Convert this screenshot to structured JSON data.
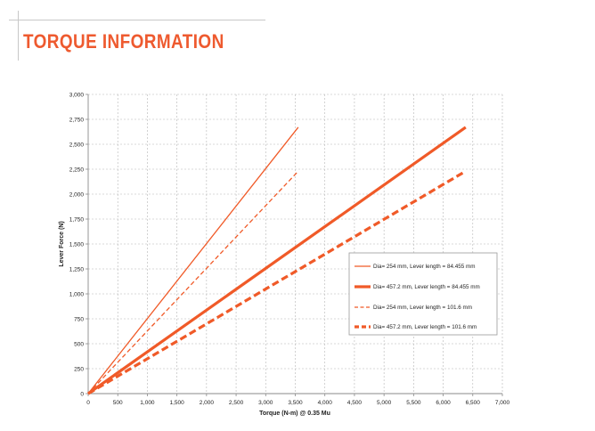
{
  "slide": {
    "title": "TORQUE INFORMATION"
  },
  "colors": {
    "accent": "#ee5a2f",
    "series": "#f05a28",
    "grid": "#b5b5b5",
    "axis": "#8a8a8a"
  },
  "chart_data": {
    "type": "line",
    "title": "",
    "xlabel": "Torque (N-m) @ 0.35 Mu",
    "ylabel": "Lever Force (N)",
    "xlim": [
      0,
      7000
    ],
    "ylim": [
      0,
      3000
    ],
    "x_ticks": [
      0,
      500,
      1000,
      1500,
      2000,
      2500,
      3000,
      3500,
      4000,
      4500,
      5000,
      5500,
      6000,
      6500,
      7000
    ],
    "x_tick_labels": [
      "0",
      "500",
      "1,000",
      "1,500",
      "2,000",
      "2,500",
      "3,000",
      "3,500",
      "4,000",
      "4,500",
      "5,000",
      "5,500",
      "6,000",
      "6,500",
      "7,000"
    ],
    "y_ticks": [
      0,
      250,
      500,
      750,
      1000,
      1250,
      1500,
      1750,
      2000,
      2250,
      2500,
      2750,
      3000
    ],
    "y_tick_labels": [
      "0",
      "250",
      "500",
      "750",
      "1,000",
      "1,250",
      "1,500",
      "1,750",
      "2,000",
      "2,250",
      "2,500",
      "2,750",
      "3,000"
    ],
    "grid": true,
    "legend_position": "right",
    "series": [
      {
        "name": "Dia= 254 mm,  Lever length = 84.455 mm",
        "style": "solid-thin",
        "x": [
          0,
          3550
        ],
        "y": [
          0,
          2670
        ]
      },
      {
        "name": "Dia= 457.2 mm,  Lever length = 84.455 mm",
        "style": "solid-thick",
        "x": [
          0,
          6380
        ],
        "y": [
          0,
          2670
        ]
      },
      {
        "name": "Dia= 254 mm,  Lever length = 101.6 mm",
        "style": "dashed-thin",
        "x": [
          0,
          3550
        ],
        "y": [
          0,
          2230
        ]
      },
      {
        "name": "Dia= 457.2 mm,  Lever length = 101.6 mm",
        "style": "dashed-thick",
        "x": [
          0,
          6380
        ],
        "y": [
          0,
          2230
        ]
      }
    ]
  }
}
